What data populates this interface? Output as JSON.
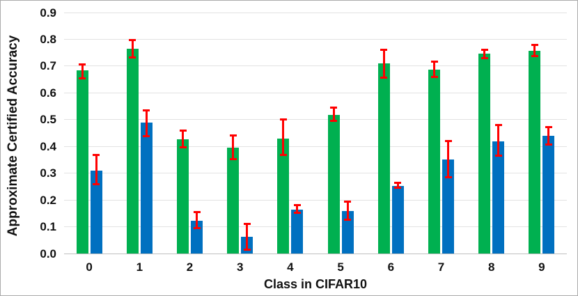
{
  "chart_data": {
    "type": "bar",
    "title": "",
    "xlabel": "Class in CIFAR10",
    "ylabel": "Approximate Certified Accuracy",
    "categories": [
      "0",
      "1",
      "2",
      "3",
      "4",
      "5",
      "6",
      "7",
      "8",
      "9"
    ],
    "yticks": [
      "0.0",
      "0.1",
      "0.2",
      "0.3",
      "0.4",
      "0.5",
      "0.6",
      "0.7",
      "0.8",
      "0.9"
    ],
    "ylim": [
      0.0,
      0.9
    ],
    "ytick_step": 0.1,
    "grid": true,
    "legend": "none",
    "error_bar_color": "#FF0000",
    "series": [
      {
        "name": "green",
        "color": "#00B050",
        "values": [
          0.685,
          0.765,
          0.427,
          0.396,
          0.43,
          0.518,
          0.71,
          0.686,
          0.747,
          0.758
        ],
        "error_low": [
          0.65,
          0.728,
          0.392,
          0.348,
          0.363,
          0.492,
          0.653,
          0.655,
          0.727,
          0.733
        ],
        "error_high": [
          0.71,
          0.802,
          0.464,
          0.445,
          0.505,
          0.548,
          0.765,
          0.72,
          0.765,
          0.783
        ]
      },
      {
        "name": "blue",
        "color": "#0070C0",
        "values": [
          0.31,
          0.488,
          0.122,
          0.063,
          0.165,
          0.158,
          0.253,
          0.35,
          0.42,
          0.44
        ],
        "error_low": [
          0.255,
          0.435,
          0.091,
          0.01,
          0.147,
          0.121,
          0.243,
          0.281,
          0.362,
          0.404
        ],
        "error_high": [
          0.372,
          0.538,
          0.158,
          0.115,
          0.184,
          0.197,
          0.267,
          0.423,
          0.483,
          0.476
        ]
      }
    ],
    "colors": {
      "gridline": "#E2E2E2",
      "axis_line": "#BFBFBF",
      "text": "#111111",
      "background": "#FFFFFF"
    }
  }
}
